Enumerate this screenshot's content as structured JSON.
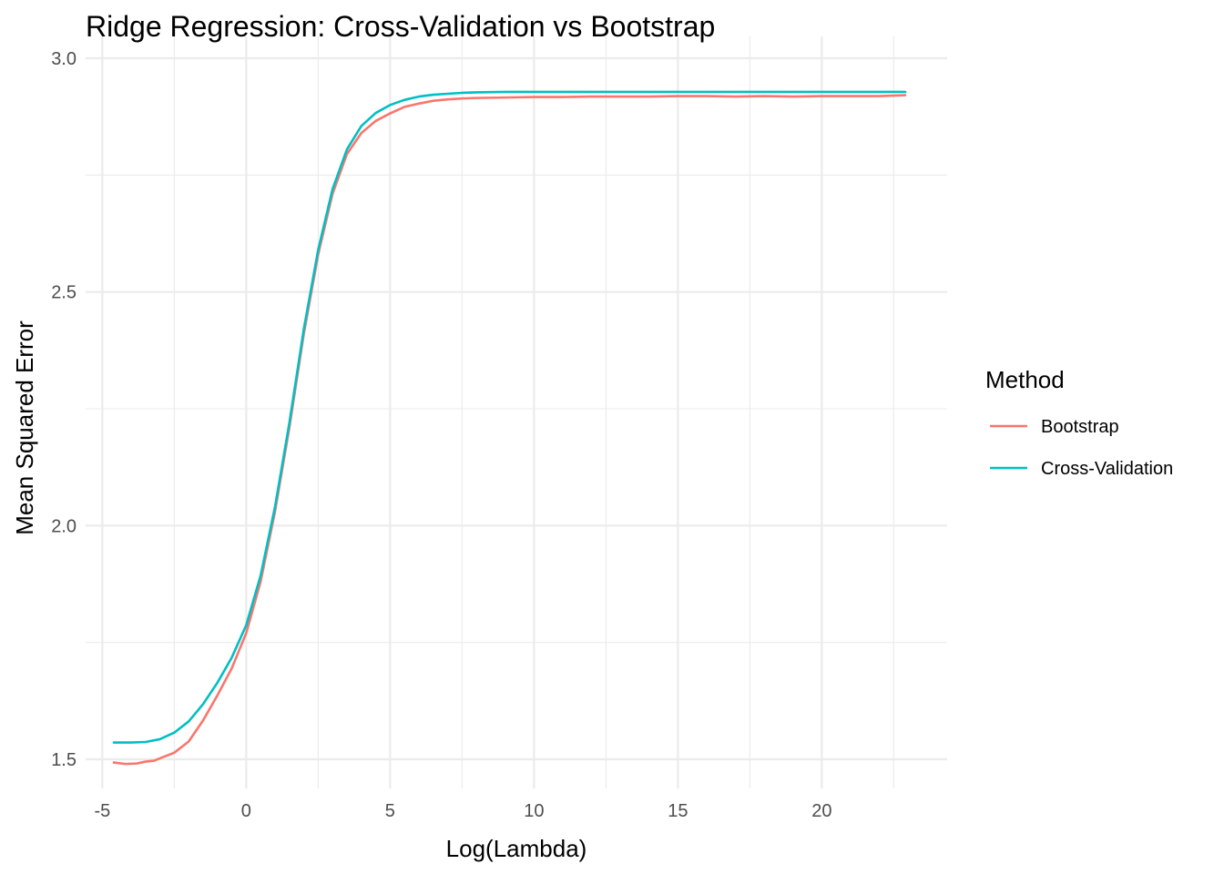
{
  "chart_data": {
    "type": "line",
    "title": "Ridge Regression: Cross-Validation vs Bootstrap",
    "xlabel": "Log(Lambda)",
    "ylabel": "Mean Squared Error",
    "xlim": [
      -5.0,
      24.0
    ],
    "ylim": [
      1.45,
      3.0
    ],
    "x_ticks": [
      {
        "value": -5,
        "label": "-5"
      },
      {
        "value": 0,
        "label": "0"
      },
      {
        "value": 5,
        "label": "5"
      },
      {
        "value": 10,
        "label": "10"
      },
      {
        "value": 15,
        "label": "15"
      },
      {
        "value": 20,
        "label": "20"
      }
    ],
    "x_minor_ticks": [
      -2.5,
      2.5,
      7.5,
      12.5,
      17.5,
      22.5
    ],
    "y_ticks": [
      {
        "value": 1.5,
        "label": "1.5"
      },
      {
        "value": 2.0,
        "label": "2.0"
      },
      {
        "value": 2.5,
        "label": "2.5"
      },
      {
        "value": 3.0,
        "label": "3.0"
      }
    ],
    "y_minor_ticks": [
      1.75,
      2.25,
      2.75
    ],
    "grid": true,
    "legend": {
      "title": "Method",
      "position": "right"
    },
    "series": [
      {
        "name": "Bootstrap",
        "color": "#f8766d",
        "x": [
          -4.6,
          -4.2,
          -3.8,
          -3.5,
          -3.2,
          -3.0,
          -2.5,
          -2.0,
          -1.5,
          -1.0,
          -0.5,
          0.0,
          0.5,
          1.0,
          1.5,
          2.0,
          2.5,
          3.0,
          3.5,
          4.0,
          4.5,
          5.0,
          5.5,
          6.0,
          6.5,
          7.0,
          7.5,
          8.0,
          9.0,
          10.0,
          11.0,
          12.0,
          13.0,
          14.0,
          15.0,
          16.0,
          17.0,
          18.0,
          19.0,
          20.0,
          21.0,
          22.0,
          22.9
        ],
        "values": [
          1.493,
          1.49,
          1.491,
          1.495,
          1.497,
          1.502,
          1.514,
          1.538,
          1.583,
          1.637,
          1.695,
          1.77,
          1.88,
          2.03,
          2.21,
          2.41,
          2.58,
          2.71,
          2.795,
          2.84,
          2.866,
          2.882,
          2.896,
          2.903,
          2.909,
          2.912,
          2.914,
          2.915,
          2.916,
          2.917,
          2.917,
          2.918,
          2.918,
          2.918,
          2.919,
          2.919,
          2.918,
          2.919,
          2.918,
          2.919,
          2.919,
          2.919,
          2.921
        ]
      },
      {
        "name": "Cross-Validation",
        "color": "#00bfc4",
        "x": [
          -4.6,
          -4.0,
          -3.5,
          -3.0,
          -2.5,
          -2.0,
          -1.5,
          -1.0,
          -0.5,
          0.0,
          0.5,
          1.0,
          1.5,
          2.0,
          2.5,
          3.0,
          3.5,
          4.0,
          4.5,
          5.0,
          5.5,
          6.0,
          6.5,
          7.0,
          7.5,
          8.0,
          9.0,
          10.0,
          11.0,
          12.0,
          14.0,
          16.0,
          18.0,
          20.0,
          22.9
        ],
        "values": [
          1.536,
          1.536,
          1.537,
          1.543,
          1.557,
          1.581,
          1.618,
          1.664,
          1.718,
          1.787,
          1.893,
          2.04,
          2.22,
          2.42,
          2.59,
          2.72,
          2.805,
          2.855,
          2.883,
          2.9,
          2.911,
          2.918,
          2.922,
          2.924,
          2.926,
          2.927,
          2.928,
          2.928,
          2.928,
          2.928,
          2.928,
          2.928,
          2.928,
          2.928,
          2.928
        ]
      }
    ]
  }
}
